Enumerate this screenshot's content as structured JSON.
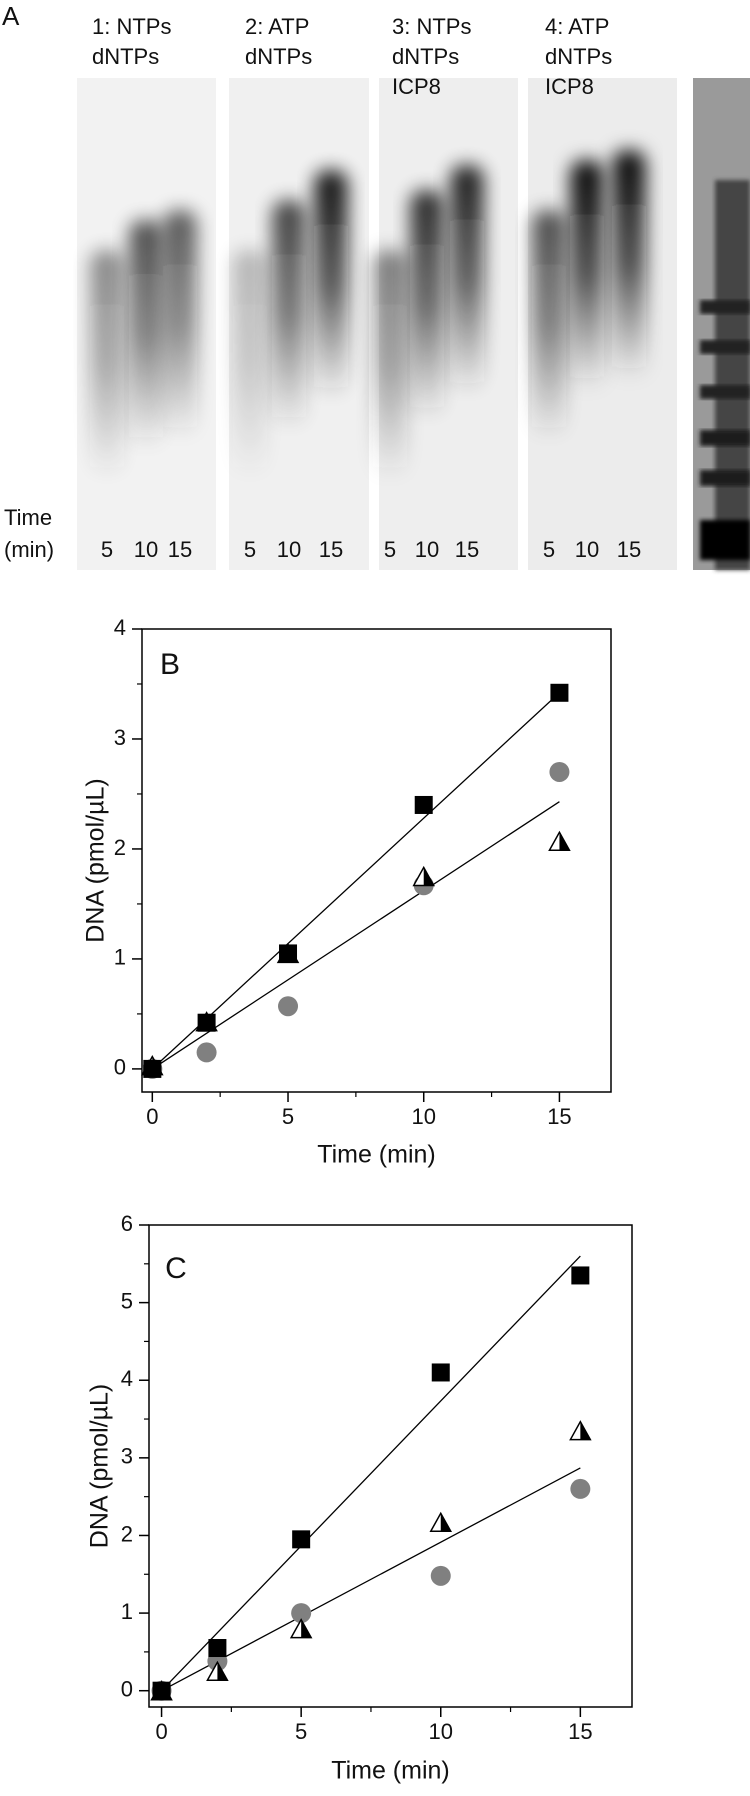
{
  "panel_a": {
    "label": "A",
    "lanes": [
      {
        "label": [
          "1: NTPs",
          "dNTPs"
        ],
        "times": [
          "5",
          "10",
          "15"
        ]
      },
      {
        "label": [
          "2: ATP",
          "dNTPs"
        ],
        "times": [
          "5",
          "10",
          "15"
        ]
      },
      {
        "label": [
          "3: NTPs",
          "dNTPs",
          "ICP8"
        ],
        "times": [
          "5",
          "10",
          "15"
        ]
      },
      {
        "label": [
          "4: ATP",
          "dNTPs",
          "ICP8"
        ],
        "times": [
          "5",
          "10",
          "15"
        ]
      }
    ],
    "time_label": [
      "Time",
      "(min)"
    ]
  },
  "chart_data": [
    {
      "type": "scatter",
      "panel_label": "B",
      "xlabel": "Time (min)",
      "ylabel": "DNA (pmol/µL)",
      "x": [
        0,
        2,
        5,
        10,
        15
      ],
      "series": [
        {
          "marker": "circle",
          "color": "#808080",
          "values": [
            0,
            0.15,
            0.57,
            1.67,
            2.7
          ]
        },
        {
          "marker": "half-triangle",
          "color": "#000000",
          "values": [
            0.03,
            0.43,
            1.05,
            1.75,
            2.07
          ]
        },
        {
          "marker": "square",
          "color": "#000000",
          "values": [
            0,
            0.42,
            1.05,
            2.4,
            3.42
          ]
        }
      ],
      "fit_lines": [
        {
          "x": [
            0,
            15
          ],
          "values": [
            0,
            3.42
          ]
        },
        {
          "x": [
            0,
            15
          ],
          "values": [
            0,
            2.43
          ]
        }
      ],
      "xlim": [
        -0.38,
        16.9
      ],
      "ylim": [
        -0.21,
        4
      ],
      "xticks": [
        0,
        5,
        10,
        15
      ],
      "yticks": [
        0,
        1,
        2,
        3,
        4
      ],
      "minor_xticks": [
        2.5,
        7.5,
        12.5
      ],
      "minor_yticks": [
        0.5,
        1.5,
        2.5,
        3.5
      ]
    },
    {
      "type": "scatter",
      "panel_label": "C",
      "xlabel": "Time (min)",
      "ylabel": "DNA (pmol/µL)",
      "x": [
        0,
        2,
        5,
        10,
        15
      ],
      "series": [
        {
          "marker": "circle",
          "color": "#808080",
          "values": [
            0,
            0.38,
            1.0,
            1.48,
            2.6
          ]
        },
        {
          "marker": "half-triangle",
          "color": "#000000",
          "values": [
            0,
            0.25,
            0.8,
            2.17,
            3.35
          ]
        },
        {
          "marker": "square",
          "color": "#000000",
          "values": [
            0,
            0.55,
            1.95,
            4.1,
            5.35
          ]
        }
      ],
      "fit_lines": [
        {
          "x": [
            0,
            15
          ],
          "values": [
            0,
            5.6
          ]
        },
        {
          "x": [
            0,
            15
          ],
          "values": [
            0,
            2.87
          ]
        }
      ],
      "xlim": [
        -0.45,
        16.85
      ],
      "ylim": [
        -0.21,
        6
      ],
      "xticks": [
        0,
        5,
        10,
        15
      ],
      "yticks": [
        0,
        1,
        2,
        3,
        4,
        5,
        6
      ],
      "minor_xticks": [
        2.5,
        7.5,
        12.5
      ],
      "minor_yticks": [
        0.5,
        1.5,
        2.5,
        3.5,
        4.5,
        5.5
      ]
    }
  ]
}
